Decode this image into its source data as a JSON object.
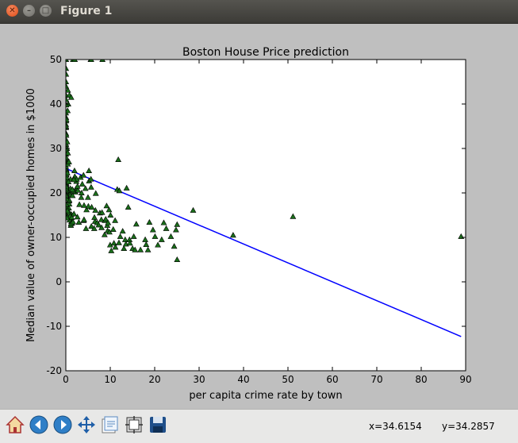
{
  "window": {
    "title": "Figure 1"
  },
  "toolbar": {
    "buttons": [
      {
        "name": "home-icon"
      },
      {
        "name": "back-icon"
      },
      {
        "name": "forward-icon"
      },
      {
        "name": "pan-icon"
      },
      {
        "name": "zoom-icon"
      },
      {
        "name": "subplots-icon"
      },
      {
        "name": "save-icon"
      }
    ],
    "x_readout": "x=34.6154",
    "y_readout": "y=34.2857"
  },
  "colors": {
    "marker": "#1a6e1a",
    "line": "#0000ff",
    "figure_bg": "#bfbfbf"
  },
  "chart_data": {
    "type": "scatter",
    "title": "Boston House Price prediction",
    "xlabel": "per capita crime rate by town",
    "ylabel": "Median value of owner-occupied homes in $1000",
    "xlim": [
      0,
      90
    ],
    "ylim": [
      -20,
      50
    ],
    "xticks": [
      0,
      10,
      20,
      30,
      40,
      50,
      60,
      70,
      80,
      90
    ],
    "yticks": [
      -20,
      -10,
      0,
      10,
      20,
      30,
      40,
      50
    ],
    "grid": false,
    "series": [
      {
        "marker": "triangle",
        "points": [
          [
            0.01,
            24.0
          ],
          [
            0.03,
            21.6
          ],
          [
            0.03,
            34.7
          ],
          [
            0.03,
            33.4
          ],
          [
            0.07,
            36.2
          ],
          [
            0.03,
            28.7
          ],
          [
            0.09,
            22.9
          ],
          [
            0.14,
            27.1
          ],
          [
            0.21,
            16.5
          ],
          [
            0.17,
            18.9
          ],
          [
            0.22,
            15.0
          ],
          [
            0.12,
            18.9
          ],
          [
            0.09,
            21.7
          ],
          [
            0.63,
            20.4
          ],
          [
            0.64,
            18.2
          ],
          [
            0.63,
            19.9
          ],
          [
            1.05,
            23.1
          ],
          [
            0.78,
            17.5
          ],
          [
            0.8,
            20.2
          ],
          [
            0.73,
            18.2
          ],
          [
            1.25,
            13.6
          ],
          [
            0.85,
            19.6
          ],
          [
            1.23,
            15.2
          ],
          [
            0.99,
            14.5
          ],
          [
            0.75,
            15.6
          ],
          [
            0.84,
            13.9
          ],
          [
            0.67,
            16.6
          ],
          [
            0.96,
            14.8
          ],
          [
            0.77,
            18.4
          ],
          [
            1.0,
            21.0
          ],
          [
            1.13,
            12.7
          ],
          [
            1.35,
            14.5
          ],
          [
            1.39,
            13.2
          ],
          [
            1.15,
            13.1
          ],
          [
            1.61,
            13.5
          ],
          [
            0.06,
            18.9
          ],
          [
            0.1,
            20.0
          ],
          [
            0.08,
            21.0
          ],
          [
            0.18,
            24.7
          ],
          [
            0.03,
            30.8
          ],
          [
            0.03,
            34.9
          ],
          [
            0.13,
            26.6
          ],
          [
            0.14,
            25.3
          ],
          [
            0.16,
            24.7
          ],
          [
            0.12,
            21.2
          ],
          [
            0.17,
            19.3
          ],
          [
            0.19,
            20.0
          ],
          [
            0.23,
            16.6
          ],
          [
            0.25,
            14.4
          ],
          [
            0.22,
            19.4
          ],
          [
            0.09,
            19.7
          ],
          [
            0.04,
            20.5
          ],
          [
            0.05,
            25.0
          ],
          [
            0.04,
            23.4
          ],
          [
            0.08,
            18.9
          ],
          [
            0.02,
            35.4
          ],
          [
            0.02,
            24.7
          ],
          [
            0.01,
            31.6
          ],
          [
            0.15,
            23.3
          ],
          [
            0.1,
            19.6
          ],
          [
            0.15,
            18.7
          ],
          [
            0.32,
            16.0
          ],
          [
            0.11,
            22.2
          ],
          [
            0.13,
            25.0
          ],
          [
            0.02,
            33.0
          ],
          [
            0.04,
            23.5
          ],
          [
            0.04,
            19.4
          ],
          [
            0.06,
            22.0
          ],
          [
            0.06,
            17.4
          ],
          [
            0.09,
            20.9
          ],
          [
            0.09,
            24.2
          ],
          [
            0.09,
            21.7
          ],
          [
            0.09,
            22.8
          ],
          [
            0.2,
            23.4
          ],
          [
            0.08,
            24.1
          ],
          [
            0.1,
            21.4
          ],
          [
            0.03,
            45.0
          ],
          [
            0.06,
            41.0
          ],
          [
            0.02,
            42.0
          ],
          [
            0.03,
            44.0
          ],
          [
            0.03,
            48.0
          ],
          [
            0.05,
            46.7
          ],
          [
            0.01,
            50.0
          ],
          [
            0.02,
            50.0
          ],
          [
            0.03,
            50.0
          ],
          [
            0.46,
            43.1
          ],
          [
            0.54,
            40.0
          ],
          [
            0.02,
            38.0
          ],
          [
            0.05,
            37.0
          ],
          [
            0.04,
            35.0
          ],
          [
            0.01,
            32.0
          ],
          [
            0.03,
            29.0
          ],
          [
            0.06,
            28.0
          ],
          [
            0.04,
            31.0
          ],
          [
            0.02,
            26.0
          ],
          [
            0.55,
            27.0
          ],
          [
            0.25,
            30.0
          ],
          [
            0.15,
            29.5
          ],
          [
            0.3,
            31.5
          ],
          [
            0.1,
            33.0
          ],
          [
            0.8,
            42.0
          ],
          [
            1.2,
            41.5
          ],
          [
            0.4,
            38.5
          ],
          [
            0.06,
            39.8
          ],
          [
            0.12,
            36.5
          ],
          [
            0.33,
            24.5
          ],
          [
            0.44,
            26.5
          ],
          [
            0.6,
            22.5
          ],
          [
            0.45,
            29.0
          ],
          [
            0.7,
            27.0
          ],
          [
            1.62,
            50.0
          ],
          [
            2.01,
            50.0
          ],
          [
            2.02,
            23.7
          ],
          [
            2.31,
            21.0
          ],
          [
            2.15,
            20.2
          ],
          [
            2.73,
            20.6
          ],
          [
            2.92,
            13.4
          ],
          [
            3.32,
            23.5
          ],
          [
            3.47,
            19.0
          ],
          [
            3.54,
            20.0
          ],
          [
            2.37,
            22.6
          ],
          [
            2.45,
            23.1
          ],
          [
            1.83,
            15.3
          ],
          [
            1.51,
            19.4
          ],
          [
            1.8,
            23.0
          ],
          [
            1.66,
            20.5
          ],
          [
            1.46,
            20.8
          ],
          [
            1.95,
            25.0
          ],
          [
            2.63,
            21.5
          ],
          [
            2.6,
            14.6
          ],
          [
            3.05,
            17.4
          ],
          [
            3.7,
            22.0
          ],
          [
            3.97,
            24.0
          ],
          [
            4.1,
            17.2
          ],
          [
            4.0,
            13.8
          ],
          [
            4.42,
            21.0
          ],
          [
            4.54,
            12.0
          ],
          [
            4.09,
            14.0
          ],
          [
            4.66,
            16.2
          ],
          [
            4.98,
            19.0
          ],
          [
            5.07,
            17.0
          ],
          [
            5.23,
            22.7
          ],
          [
            5.69,
            21.3
          ],
          [
            5.82,
            16.8
          ],
          [
            5.75,
            12.5
          ],
          [
            5.59,
            50.0
          ],
          [
            6.39,
            12.0
          ],
          [
            6.55,
            13.6
          ],
          [
            6.74,
            19.9
          ],
          [
            6.44,
            14.5
          ],
          [
            5.2,
            25.0
          ],
          [
            5.66,
            23.1
          ],
          [
            5.7,
            50.0
          ],
          [
            6.65,
            16.1
          ],
          [
            7.05,
            13.3
          ],
          [
            7.4,
            12.8
          ],
          [
            7.67,
            15.5
          ],
          [
            7.99,
            14.0
          ],
          [
            8.05,
            12.2
          ],
          [
            8.15,
            15.6
          ],
          [
            8.24,
            50.0
          ],
          [
            8.72,
            10.6
          ],
          [
            8.79,
            13.8
          ],
          [
            8.98,
            14.1
          ],
          [
            9.18,
            17.1
          ],
          [
            9.33,
            12.7
          ],
          [
            9.39,
            11.5
          ],
          [
            9.51,
            13.3
          ],
          [
            9.73,
            16.2
          ],
          [
            9.82,
            11.2
          ],
          [
            9.97,
            8.3
          ],
          [
            10.06,
            15.0
          ],
          [
            10.23,
            7.0
          ],
          [
            10.67,
            11.8
          ],
          [
            10.83,
            8.7
          ],
          [
            11.09,
            13.8
          ],
          [
            11.16,
            7.8
          ],
          [
            11.58,
            20.8
          ],
          [
            11.81,
            27.5
          ],
          [
            11.95,
            8.8
          ],
          [
            12.05,
            20.5
          ],
          [
            12.25,
            10.2
          ],
          [
            12.8,
            11.4
          ],
          [
            13.08,
            7.5
          ],
          [
            13.36,
            9.5
          ],
          [
            13.52,
            8.5
          ],
          [
            13.68,
            21.1
          ],
          [
            14.05,
            16.8
          ],
          [
            14.33,
            9.5
          ],
          [
            14.42,
            8.7
          ],
          [
            15.02,
            7.5
          ],
          [
            15.29,
            10.2
          ],
          [
            15.58,
            7.2
          ],
          [
            15.86,
            13.0
          ],
          [
            16.81,
            7.2
          ],
          [
            17.87,
            9.5
          ],
          [
            18.08,
            8.4
          ],
          [
            18.49,
            7.2
          ],
          [
            18.81,
            13.4
          ],
          [
            19.61,
            11.7
          ],
          [
            20.08,
            10.2
          ],
          [
            20.72,
            8.3
          ],
          [
            21.58,
            9.5
          ],
          [
            22.05,
            13.3
          ],
          [
            22.6,
            12.0
          ],
          [
            23.65,
            10.2
          ],
          [
            24.39,
            8.0
          ],
          [
            24.8,
            11.7
          ],
          [
            25.05,
            12.9
          ],
          [
            25.05,
            5.0
          ],
          [
            28.66,
            16.1
          ],
          [
            37.66,
            10.5
          ],
          [
            51.14,
            14.7
          ],
          [
            88.98,
            10.2
          ]
        ]
      }
    ],
    "regression_line": {
      "x": [
        0,
        88.98
      ],
      "y": [
        25.5,
        -12.3
      ]
    }
  }
}
